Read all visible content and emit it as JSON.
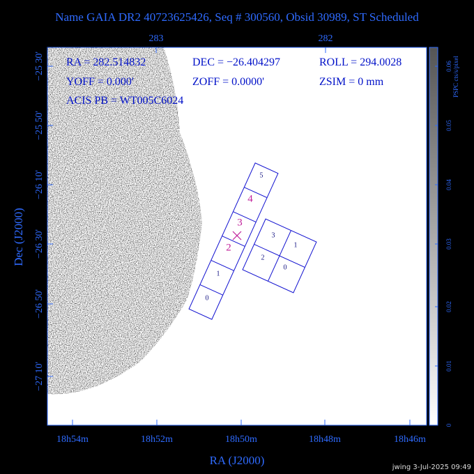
{
  "title": "Name GAIA DR2 40723625426, Seq # 300560, Obsid 30989, ST Scheduled",
  "info": {
    "ra": "RA = 282.514832",
    "dec": "DEC = −26.404297",
    "roll": "ROLL = 294.0028",
    "yoff": "YOFF =   0.000'",
    "zoff": "ZOFF =  0.0000'",
    "zsim": "ZSIM = 0 mm",
    "acis": "ACIS PB = WT005C6024"
  },
  "x_axis": {
    "label": "RA (J2000)",
    "ticks": [
      "18h54m",
      "18h52m",
      "18h50m",
      "18h48m",
      "18h46m"
    ]
  },
  "top_axis": {
    "ticks": [
      "283",
      "282"
    ]
  },
  "y_axis": {
    "label": "Dec (J2000)",
    "ticks": [
      "−25 30'",
      "−25 50'",
      "−26 10'",
      "−26 30'",
      "−26 50'",
      "−27 10'"
    ]
  },
  "colorbar": {
    "label": "PSPC cts/s/pixel",
    "ticks": [
      "0",
      "0.01",
      "0.02",
      "0.03",
      "0.04",
      "0.05",
      "0.06"
    ]
  },
  "chips": {
    "acis_s": [
      "0",
      "1",
      "2",
      "3",
      "4",
      "5"
    ],
    "acis_i": [
      "0",
      "1",
      "2",
      "3"
    ]
  },
  "footer": "jwing  3-Jul-2025 09:49"
}
